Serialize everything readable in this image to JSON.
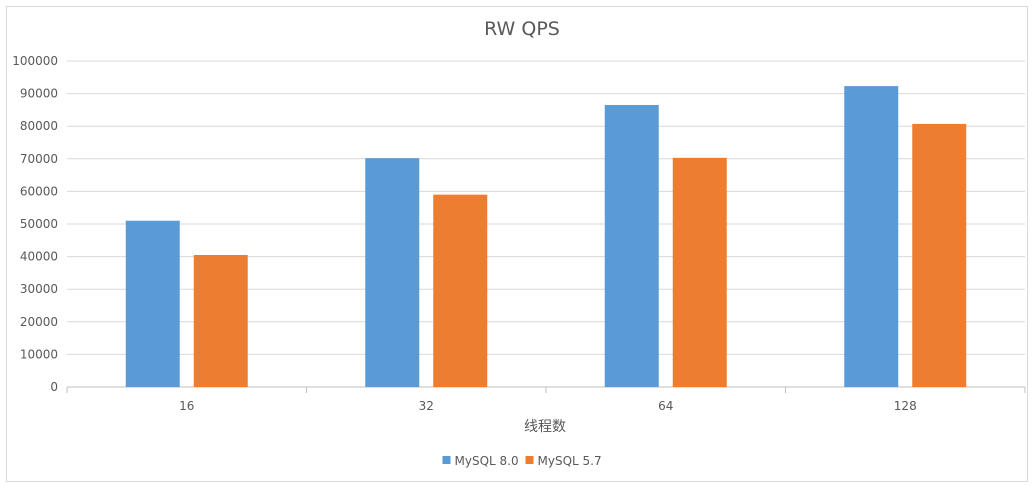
{
  "chart_data": {
    "type": "bar",
    "title": "RW QPS",
    "xlabel": "线程数",
    "ylabel": "",
    "categories": [
      "16",
      "32",
      "64",
      "128"
    ],
    "ylim": [
      0,
      100000
    ],
    "yticks": [
      0,
      10000,
      20000,
      30000,
      40000,
      50000,
      60000,
      70000,
      80000,
      90000,
      100000
    ],
    "ytick_labels": [
      "0",
      "10000",
      "20000",
      "30000",
      "40000",
      "50000",
      "60000",
      "70000",
      "80000",
      "90000",
      "100000"
    ],
    "grid": true,
    "legend_position": "bottom",
    "series": [
      {
        "name": "MySQL 8.0",
        "color": "#5b9bd5",
        "values": [
          51000,
          70200,
          86500,
          92300
        ]
      },
      {
        "name": "MySQL 5.7",
        "color": "#ed7d31",
        "values": [
          40500,
          59000,
          70300,
          80700
        ]
      }
    ]
  }
}
